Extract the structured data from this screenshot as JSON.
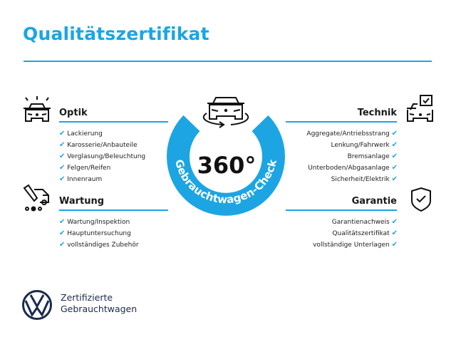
{
  "title": "Qualitätszertifikat",
  "badge": {
    "value": "360°",
    "ring_text": "Gebrauchtwagen-Check"
  },
  "check_icon": "✔",
  "colors": {
    "accent": "#1da5e3",
    "brand": "#1b2a4e"
  },
  "sections": {
    "optik": {
      "heading": "Optik",
      "icon": "car-lights-icon",
      "items": [
        "Lackierung",
        "Karosserie/Anbauteile",
        "Verglasung/Beleuchtung",
        "Felgen/Reifen",
        "Innenraum"
      ]
    },
    "wartung": {
      "heading": "Wartung",
      "icon": "service-van-icon",
      "items": [
        "Wartung/Inspektion",
        "Hauptuntersuchung",
        "vollständiges Zubehör"
      ]
    },
    "technik": {
      "heading": "Technik",
      "icon": "car-checkbox-icon",
      "items": [
        "Aggregate/Antriebsstrang",
        "Lenkung/Fahrwerk",
        "Bremsanlage",
        "Unterboden/Abgasanlage",
        "Sicherheit/Elektrik"
      ]
    },
    "garantie": {
      "heading": "Garantie",
      "icon": "shield-check-icon",
      "items": [
        "Garantienachweis",
        "Qualitätszertifikat",
        "vollständige Unterlagen"
      ]
    }
  },
  "footer": {
    "line1": "Zertifizierte",
    "line2": "Gebrauchtwagen",
    "logo": "vw-logo"
  }
}
